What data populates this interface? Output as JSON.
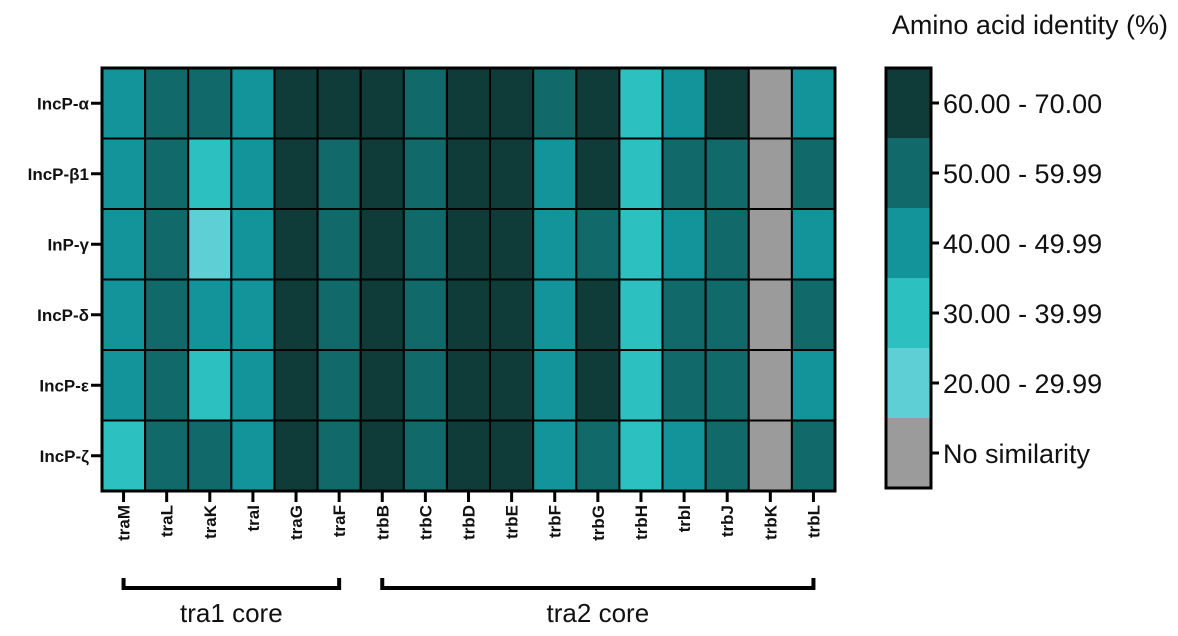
{
  "chart_data": {
    "type": "heatmap",
    "rows": [
      "IncP-α",
      "IncP-β1",
      "InP-γ",
      "IncP-δ",
      "IncP-ε",
      "IncP-ζ"
    ],
    "columns": [
      "traM",
      "traL",
      "traK",
      "traI",
      "traG",
      "traF",
      "trbB",
      "trbC",
      "trbD",
      "trbE",
      "trbF",
      "trbG",
      "trbH",
      "trbI",
      "trbJ",
      "trbK",
      "trbL"
    ],
    "column_groups": [
      {
        "label": "tra1 core",
        "from": "traM",
        "to": "traF"
      },
      {
        "label": "tra2 core",
        "from": "trbB",
        "to": "trbL"
      }
    ],
    "legend": {
      "title": "Amino acid identity (%)",
      "bins": [
        {
          "label": "60.00 - 70.00",
          "color": "#0f3b39"
        },
        {
          "label": "50.00 - 59.99",
          "color": "#11696a"
        },
        {
          "label": "40.00 - 49.99",
          "color": "#13939a"
        },
        {
          "label": "30.00 - 39.99",
          "color": "#2cc0c0"
        },
        {
          "label": "20.00 - 29.99",
          "color": "#5fcfd6"
        },
        {
          "label": "No similarity",
          "color": "#9b9b9b"
        }
      ]
    },
    "bin_matrix": [
      [
        2,
        1,
        1,
        2,
        0,
        0,
        0,
        1,
        0,
        0,
        1,
        0,
        3,
        2,
        0,
        5,
        2
      ],
      [
        2,
        1,
        3,
        2,
        0,
        1,
        0,
        1,
        0,
        0,
        2,
        0,
        3,
        1,
        1,
        5,
        1
      ],
      [
        2,
        1,
        4,
        2,
        0,
        1,
        0,
        1,
        0,
        0,
        2,
        1,
        3,
        2,
        1,
        5,
        2
      ],
      [
        2,
        1,
        2,
        2,
        0,
        1,
        0,
        1,
        0,
        0,
        2,
        0,
        3,
        1,
        1,
        5,
        1
      ],
      [
        2,
        1,
        3,
        2,
        0,
        1,
        0,
        1,
        0,
        0,
        2,
        0,
        3,
        1,
        1,
        5,
        2
      ],
      [
        3,
        1,
        1,
        2,
        0,
        1,
        0,
        1,
        0,
        0,
        2,
        1,
        3,
        2,
        1,
        5,
        1
      ]
    ]
  }
}
